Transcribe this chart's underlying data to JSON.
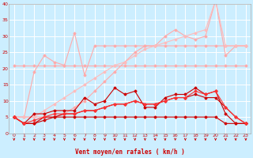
{
  "xlabel": "Vent moyen/en rafales ( km/h )",
  "xlim": [
    -0.5,
    23.5
  ],
  "ylim": [
    0,
    40
  ],
  "yticks": [
    0,
    5,
    10,
    15,
    20,
    25,
    30,
    35,
    40
  ],
  "xticks": [
    0,
    1,
    2,
    3,
    4,
    5,
    6,
    7,
    8,
    9,
    10,
    11,
    12,
    13,
    14,
    15,
    16,
    17,
    18,
    19,
    20,
    21,
    22,
    23
  ],
  "bg_color": "#cceeff",
  "grid_color": "#ffffff",
  "series": [
    {
      "name": "pink_flat_upper",
      "color": "#ffaaaa",
      "linewidth": 0.8,
      "marker": "D",
      "markersize": 1.5,
      "y": [
        21,
        21,
        21,
        21,
        21,
        21,
        21,
        21,
        21,
        21,
        21,
        21,
        21,
        21,
        21,
        21,
        21,
        21,
        21,
        21,
        21,
        21,
        21,
        21
      ]
    },
    {
      "name": "pink_rising_line1",
      "color": "#ffaaaa",
      "linewidth": 0.8,
      "marker": "D",
      "markersize": 1.5,
      "y": [
        5,
        5,
        5,
        5,
        5,
        6,
        8,
        10,
        13,
        16,
        19,
        22,
        25,
        27,
        27,
        27,
        27,
        27,
        27,
        27,
        27,
        27,
        27,
        27
      ]
    },
    {
      "name": "pink_jagged_line2",
      "color": "#ffaaaa",
      "linewidth": 0.8,
      "marker": "D",
      "markersize": 1.5,
      "y": [
        5,
        5,
        19,
        24,
        22,
        21,
        31,
        18,
        27,
        27,
        27,
        27,
        27,
        27,
        27,
        30,
        32,
        30,
        29,
        30,
        41,
        24,
        27,
        27
      ]
    },
    {
      "name": "pink_rising_upper_triangle",
      "color": "#ffbbbb",
      "linewidth": 0.8,
      "marker": "D",
      "markersize": 1.5,
      "y": [
        5,
        5,
        5,
        7,
        9,
        11,
        13,
        15,
        17,
        19,
        21,
        22,
        24,
        26,
        27,
        28,
        29,
        30,
        31,
        32,
        41,
        27,
        27,
        27
      ]
    },
    {
      "name": "red_flat_low",
      "color": "#cc0000",
      "linewidth": 0.8,
      "marker": "D",
      "markersize": 1.5,
      "y": [
        5,
        3,
        3,
        4,
        5,
        5,
        5,
        5,
        5,
        5,
        5,
        5,
        5,
        5,
        5,
        5,
        5,
        5,
        5,
        5,
        5,
        3,
        3,
        3
      ]
    },
    {
      "name": "red_rising_line1",
      "color": "#cc0000",
      "linewidth": 0.8,
      "marker": "D",
      "markersize": 1.5,
      "y": [
        5,
        3,
        3,
        5,
        5,
        6,
        6,
        7,
        7,
        8,
        9,
        9,
        10,
        9,
        9,
        10,
        11,
        11,
        12,
        11,
        11,
        8,
        5,
        3
      ]
    },
    {
      "name": "red_jagged_upper",
      "color": "#cc0000",
      "linewidth": 0.8,
      "marker": "D",
      "markersize": 1.5,
      "y": [
        5,
        3,
        6,
        6,
        7,
        7,
        7,
        11,
        9,
        10,
        14,
        12,
        13,
        8,
        8,
        11,
        12,
        12,
        14,
        12,
        13,
        6,
        3,
        3
      ]
    },
    {
      "name": "red_rising_lower_triangle",
      "color": "#ff3333",
      "linewidth": 0.8,
      "marker": "D",
      "markersize": 1.5,
      "y": [
        5,
        3,
        4,
        5,
        6,
        6,
        6,
        7,
        7,
        8,
        9,
        9,
        10,
        9,
        9,
        10,
        11,
        11,
        13,
        12,
        13,
        8,
        5,
        3
      ]
    }
  ],
  "arrow_color": "#cc0000"
}
